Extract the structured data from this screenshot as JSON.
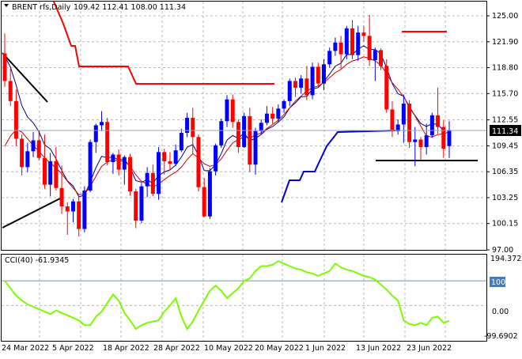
{
  "header": {
    "symbol": "BRENT rfs,Daily",
    "ohlc": "109.42 112.41 108.00 111.34"
  },
  "indicator": {
    "label": "CCI(40) -61.9345",
    "max_label": "194.3722",
    "min_label": "-99.6902",
    "level_100": "100",
    "level_0": "0.00"
  },
  "current_price_label": "111.34",
  "colors": {
    "up_candle": "#0000ff",
    "down_candle": "#ff0000",
    "ma_fast": "#cc0000",
    "ma_slow": "#000080",
    "stop_red": "#ff0000",
    "stop_blue": "#0000cc",
    "cci": "#7cfc00",
    "grid": "#b8b8b8"
  },
  "chart_data": [
    {
      "type": "candlestick",
      "title": "BRENT rfs,Daily",
      "y_ticks": [
        "125.00",
        "121.90",
        "118.80",
        "115.70",
        "112.55",
        "109.45",
        "106.35",
        "103.25",
        "100.15",
        "97.00"
      ],
      "x_ticks": [
        "24 Mar 2022",
        "5 Apr 2022",
        "18 Apr 2022",
        "28 Apr 2022",
        "10 May 2022",
        "20 May 2022",
        "1 Jun 2022",
        "13 Jun 2022",
        "23 Jun 2022"
      ],
      "ylim": [
        97.0,
        125.5
      ],
      "grid": true,
      "candles": [
        [
          120.5,
          122.9,
          116.5,
          117.2
        ],
        [
          117.2,
          118.7,
          114.2,
          114.8
        ],
        [
          114.8,
          116.2,
          109.4,
          110.3
        ],
        [
          110.3,
          110.8,
          105.9,
          106.9
        ],
        [
          106.9,
          109.8,
          106.3,
          108.8
        ],
        [
          108.8,
          111.1,
          108.1,
          110.1
        ],
        [
          110.1,
          111.1,
          107.7,
          108.0
        ],
        [
          108.0,
          110.8,
          104.3,
          104.8
        ],
        [
          104.8,
          108.6,
          103.4,
          107.6
        ],
        [
          107.6,
          109.3,
          104.1,
          104.4
        ],
        [
          104.4,
          107.1,
          101.3,
          102.2
        ],
        [
          102.2,
          102.7,
          98.8,
          101.6
        ],
        [
          101.6,
          103.1,
          100.3,
          102.8
        ],
        [
          102.8,
          103.3,
          98.6,
          99.5
        ],
        [
          99.5,
          104.6,
          99.1,
          104.1
        ],
        [
          104.1,
          110.2,
          103.9,
          109.9
        ],
        [
          109.9,
          112.1,
          108.6,
          111.9
        ],
        [
          111.9,
          113.6,
          111.2,
          112.3
        ],
        [
          112.3,
          112.8,
          107.1,
          107.5
        ],
        [
          107.5,
          108.6,
          106.1,
          108.4
        ],
        [
          108.4,
          109.0,
          105.9,
          106.6
        ],
        [
          106.6,
          108.3,
          104.8,
          108.1
        ],
        [
          108.1,
          108.5,
          103.5,
          104.0
        ],
        [
          104.0,
          104.3,
          99.6,
          100.5
        ],
        [
          100.5,
          105.0,
          100.2,
          104.6
        ],
        [
          104.6,
          106.9,
          103.3,
          106.2
        ],
        [
          106.2,
          107.2,
          103.4,
          103.7
        ],
        [
          103.7,
          109.3,
          103.0,
          108.7
        ],
        [
          108.7,
          109.1,
          106.0,
          107.6
        ],
        [
          107.6,
          108.7,
          106.5,
          107.3
        ],
        [
          107.3,
          109.6,
          107.0,
          108.9
        ],
        [
          108.9,
          111.5,
          108.7,
          111.0
        ],
        [
          111.0,
          113.4,
          110.5,
          112.8
        ],
        [
          112.8,
          114.0,
          108.5,
          110.5
        ],
        [
          110.5,
          110.8,
          104.0,
          104.5
        ],
        [
          104.5,
          105.6,
          100.9,
          101.0
        ],
        [
          101.0,
          106.8,
          100.7,
          106.4
        ],
        [
          106.4,
          109.7,
          105.9,
          109.5
        ],
        [
          109.5,
          112.7,
          109.2,
          112.4
        ],
        [
          112.4,
          115.5,
          111.7,
          115.0
        ],
        [
          115.0,
          115.6,
          111.6,
          112.3
        ],
        [
          112.3,
          112.6,
          108.6,
          109.3
        ],
        [
          109.3,
          113.4,
          109.2,
          113.0
        ],
        [
          113.0,
          114.0,
          106.3,
          107.2
        ],
        [
          107.2,
          111.6,
          106.0,
          111.2
        ],
        [
          111.2,
          112.6,
          110.8,
          112.2
        ],
        [
          112.2,
          114.2,
          111.9,
          113.3
        ],
        [
          113.3,
          114.1,
          112.1,
          112.7
        ],
        [
          112.7,
          114.4,
          112.2,
          113.9
        ],
        [
          113.9,
          115.0,
          113.4,
          114.8
        ],
        [
          114.8,
          117.5,
          114.2,
          117.2
        ],
        [
          117.2,
          117.6,
          115.3,
          116.4
        ],
        [
          116.4,
          117.9,
          115.7,
          117.5
        ],
        [
          117.5,
          119.0,
          114.9,
          115.5
        ],
        [
          115.5,
          119.4,
          115.0,
          118.9
        ],
        [
          118.9,
          119.4,
          116.5,
          116.9
        ],
        [
          116.9,
          119.8,
          116.1,
          119.2
        ],
        [
          119.2,
          121.2,
          118.8,
          120.8
        ],
        [
          120.8,
          122.4,
          120.2,
          121.8
        ],
        [
          121.8,
          122.6,
          118.7,
          120.4
        ],
        [
          120.4,
          123.8,
          119.8,
          123.5
        ],
        [
          123.5,
          124.5,
          119.8,
          120.3
        ],
        [
          120.3,
          123.8,
          119.6,
          123.0
        ],
        [
          123.0,
          123.8,
          121.9,
          122.6
        ],
        [
          122.6,
          125.1,
          119.0,
          119.7
        ],
        [
          119.7,
          121.2,
          117.2,
          120.9
        ],
        [
          120.9,
          121.1,
          118.5,
          119.0
        ],
        [
          119.0,
          119.8,
          113.4,
          113.8
        ],
        [
          113.8,
          114.8,
          110.5,
          111.2
        ],
        [
          111.2,
          112.6,
          110.8,
          112.0
        ],
        [
          112.0,
          115.6,
          109.8,
          114.5
        ],
        [
          114.5,
          114.9,
          109.2,
          109.9
        ],
        [
          109.9,
          111.7,
          107.0,
          110.2
        ],
        [
          110.2,
          110.5,
          107.8,
          109.3
        ],
        [
          109.3,
          112.1,
          108.4,
          110.7
        ],
        [
          110.7,
          113.4,
          110.4,
          113.1
        ],
        [
          113.1,
          116.4,
          110.9,
          111.7
        ],
        [
          111.7,
          112.5,
          108.0,
          109.1
        ],
        [
          109.42,
          112.41,
          108.0,
          111.34
        ]
      ],
      "moving_average_fast": [
        109.4,
        110.6,
        111.4,
        111.1,
        110.3,
        109.5,
        108.8,
        108.0,
        107.4,
        106.8,
        106.1,
        105.2,
        104.4,
        103.6,
        103.7,
        104.6,
        105.8,
        107.0,
        107.5,
        107.8,
        107.6,
        107.6,
        107.0,
        106.0,
        105.2,
        104.9,
        104.5,
        104.9,
        105.4,
        105.9,
        106.3,
        106.9,
        107.8,
        108.5,
        108.0,
        107.3,
        107.0,
        107.2,
        107.9,
        108.9,
        109.8,
        110.2,
        110.5,
        110.4,
        110.7,
        111.0,
        111.5,
        112.0,
        112.5,
        113.2,
        114.0,
        114.8,
        115.4,
        116.0,
        116.4,
        116.6,
        117.0,
        117.6,
        118.2,
        118.6,
        119.2,
        119.6,
        119.8,
        120.1,
        119.9,
        119.6,
        119.1,
        118.1,
        117.0,
        116.2,
        115.3,
        114.2,
        113.0,
        111.8,
        110.6,
        110.5,
        110.8,
        110.9,
        111.1
      ]
    },
    {
      "type": "line",
      "title": "CCI(40) -61.9345",
      "y_ticks": [
        "194.3722",
        "100",
        "0.00",
        "-99.6902"
      ],
      "ylim": [
        -140,
        200
      ],
      "values": [
        100,
        70,
        40,
        20,
        5,
        -5,
        -15,
        -25,
        -35,
        -20,
        -30,
        -40,
        -50,
        -60,
        -80,
        -80,
        -45,
        -25,
        10,
        45,
        20,
        -30,
        -60,
        -95,
        -80,
        -70,
        -65,
        -60,
        -25,
        0,
        30,
        -45,
        -95,
        -65,
        -20,
        20,
        60,
        80,
        60,
        30,
        50,
        70,
        100,
        110,
        140,
        160,
        160,
        165,
        180,
        170,
        160,
        150,
        145,
        135,
        130,
        120,
        130,
        140,
        170,
        155,
        145,
        140,
        130,
        120,
        115,
        105,
        85,
        65,
        40,
        20,
        -60,
        -75,
        -80,
        -70,
        -80,
        -50,
        -45,
        -70,
        -62
      ]
    }
  ]
}
